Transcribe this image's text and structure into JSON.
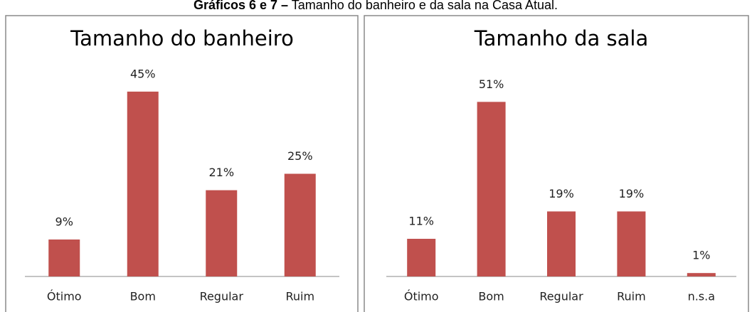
{
  "caption": {
    "label": "Gráficos 6 e 7 –",
    "text": "Tamanho do banheiro e da sala na Casa Atual."
  },
  "chart_data": [
    {
      "type": "bar",
      "title": "Tamanho do banheiro",
      "categories": [
        "Ótimo",
        "Bom",
        "Regular",
        "Ruim"
      ],
      "values": [
        9,
        45,
        21,
        25
      ],
      "value_labels": [
        "9%",
        "45%",
        "21%",
        "25%"
      ],
      "color": "#c0504d",
      "ylim": [
        0,
        50
      ]
    },
    {
      "type": "bar",
      "title": "Tamanho da sala",
      "categories": [
        "Ótimo",
        "Bom",
        "Regular",
        "Ruim",
        "n.s.a"
      ],
      "values": [
        11,
        51,
        19,
        19,
        1
      ],
      "value_labels": [
        "11%",
        "51%",
        "19%",
        "19%",
        "1%"
      ],
      "color": "#c0504d",
      "ylim": [
        0,
        60
      ]
    }
  ]
}
